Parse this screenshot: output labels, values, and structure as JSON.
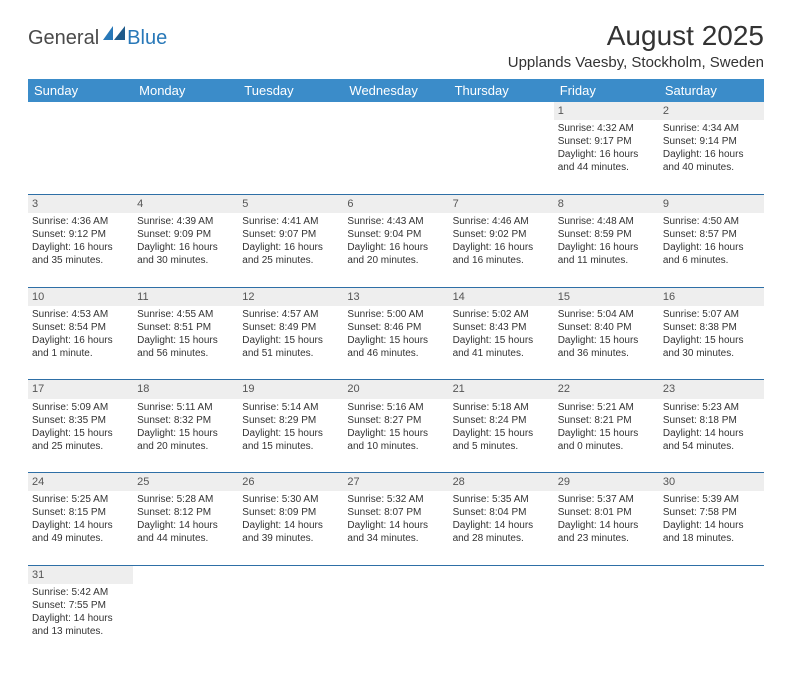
{
  "logo": {
    "text_left": "General",
    "text_right": "Blue"
  },
  "title": "August 2025",
  "location": "Upplands Vaesby, Stockholm, Sweden",
  "colors": {
    "header_bg": "#3b8cc9",
    "header_fg": "#ffffff",
    "daynum_bg": "#eeeeee",
    "rule": "#2e6fa6",
    "text": "#333333",
    "logo_gray": "#4a4a4a",
    "logo_blue": "#2878b8"
  },
  "weekdays": [
    "Sunday",
    "Monday",
    "Tuesday",
    "Wednesday",
    "Thursday",
    "Friday",
    "Saturday"
  ],
  "weeks": [
    [
      null,
      null,
      null,
      null,
      null,
      {
        "n": 1,
        "sr": "4:32 AM",
        "ss": "9:17 PM",
        "dl": "16 hours and 44 minutes."
      },
      {
        "n": 2,
        "sr": "4:34 AM",
        "ss": "9:14 PM",
        "dl": "16 hours and 40 minutes."
      }
    ],
    [
      {
        "n": 3,
        "sr": "4:36 AM",
        "ss": "9:12 PM",
        "dl": "16 hours and 35 minutes."
      },
      {
        "n": 4,
        "sr": "4:39 AM",
        "ss": "9:09 PM",
        "dl": "16 hours and 30 minutes."
      },
      {
        "n": 5,
        "sr": "4:41 AM",
        "ss": "9:07 PM",
        "dl": "16 hours and 25 minutes."
      },
      {
        "n": 6,
        "sr": "4:43 AM",
        "ss": "9:04 PM",
        "dl": "16 hours and 20 minutes."
      },
      {
        "n": 7,
        "sr": "4:46 AM",
        "ss": "9:02 PM",
        "dl": "16 hours and 16 minutes."
      },
      {
        "n": 8,
        "sr": "4:48 AM",
        "ss": "8:59 PM",
        "dl": "16 hours and 11 minutes."
      },
      {
        "n": 9,
        "sr": "4:50 AM",
        "ss": "8:57 PM",
        "dl": "16 hours and 6 minutes."
      }
    ],
    [
      {
        "n": 10,
        "sr": "4:53 AM",
        "ss": "8:54 PM",
        "dl": "16 hours and 1 minute."
      },
      {
        "n": 11,
        "sr": "4:55 AM",
        "ss": "8:51 PM",
        "dl": "15 hours and 56 minutes."
      },
      {
        "n": 12,
        "sr": "4:57 AM",
        "ss": "8:49 PM",
        "dl": "15 hours and 51 minutes."
      },
      {
        "n": 13,
        "sr": "5:00 AM",
        "ss": "8:46 PM",
        "dl": "15 hours and 46 minutes."
      },
      {
        "n": 14,
        "sr": "5:02 AM",
        "ss": "8:43 PM",
        "dl": "15 hours and 41 minutes."
      },
      {
        "n": 15,
        "sr": "5:04 AM",
        "ss": "8:40 PM",
        "dl": "15 hours and 36 minutes."
      },
      {
        "n": 16,
        "sr": "5:07 AM",
        "ss": "8:38 PM",
        "dl": "15 hours and 30 minutes."
      }
    ],
    [
      {
        "n": 17,
        "sr": "5:09 AM",
        "ss": "8:35 PM",
        "dl": "15 hours and 25 minutes."
      },
      {
        "n": 18,
        "sr": "5:11 AM",
        "ss": "8:32 PM",
        "dl": "15 hours and 20 minutes."
      },
      {
        "n": 19,
        "sr": "5:14 AM",
        "ss": "8:29 PM",
        "dl": "15 hours and 15 minutes."
      },
      {
        "n": 20,
        "sr": "5:16 AM",
        "ss": "8:27 PM",
        "dl": "15 hours and 10 minutes."
      },
      {
        "n": 21,
        "sr": "5:18 AM",
        "ss": "8:24 PM",
        "dl": "15 hours and 5 minutes."
      },
      {
        "n": 22,
        "sr": "5:21 AM",
        "ss": "8:21 PM",
        "dl": "15 hours and 0 minutes."
      },
      {
        "n": 23,
        "sr": "5:23 AM",
        "ss": "8:18 PM",
        "dl": "14 hours and 54 minutes."
      }
    ],
    [
      {
        "n": 24,
        "sr": "5:25 AM",
        "ss": "8:15 PM",
        "dl": "14 hours and 49 minutes."
      },
      {
        "n": 25,
        "sr": "5:28 AM",
        "ss": "8:12 PM",
        "dl": "14 hours and 44 minutes."
      },
      {
        "n": 26,
        "sr": "5:30 AM",
        "ss": "8:09 PM",
        "dl": "14 hours and 39 minutes."
      },
      {
        "n": 27,
        "sr": "5:32 AM",
        "ss": "8:07 PM",
        "dl": "14 hours and 34 minutes."
      },
      {
        "n": 28,
        "sr": "5:35 AM",
        "ss": "8:04 PM",
        "dl": "14 hours and 28 minutes."
      },
      {
        "n": 29,
        "sr": "5:37 AM",
        "ss": "8:01 PM",
        "dl": "14 hours and 23 minutes."
      },
      {
        "n": 30,
        "sr": "5:39 AM",
        "ss": "7:58 PM",
        "dl": "14 hours and 18 minutes."
      }
    ],
    [
      {
        "n": 31,
        "sr": "5:42 AM",
        "ss": "7:55 PM",
        "dl": "14 hours and 13 minutes."
      },
      null,
      null,
      null,
      null,
      null,
      null
    ]
  ],
  "labels": {
    "sunrise": "Sunrise: ",
    "sunset": "Sunset: ",
    "daylight": "Daylight: "
  }
}
